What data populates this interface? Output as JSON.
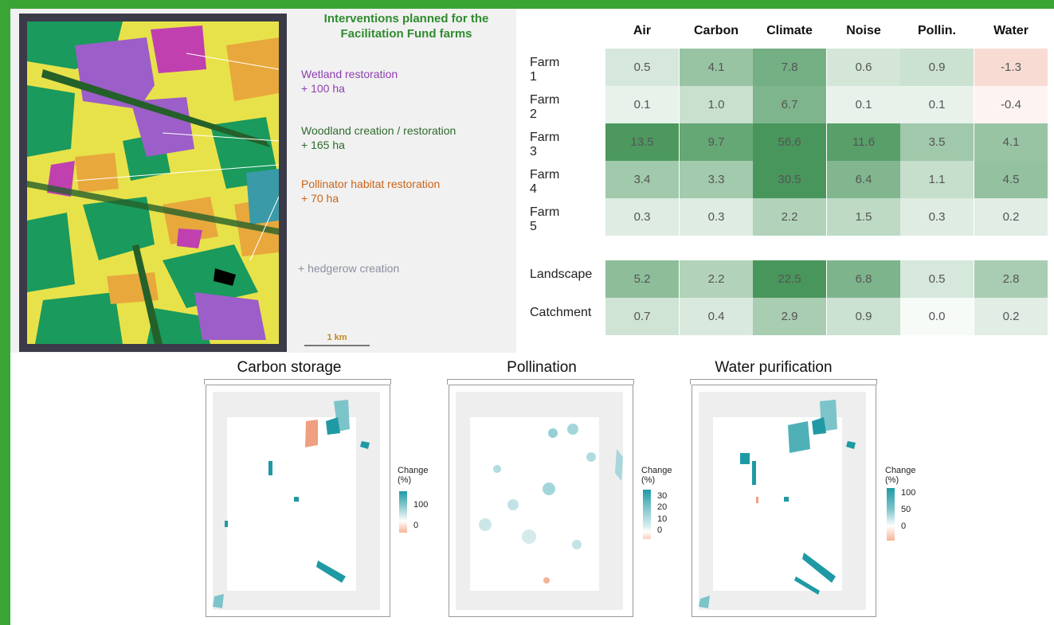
{
  "left_panel": {
    "title": "Interventions planned for the Facilitation Fund farms",
    "legend": [
      {
        "label": "Wetland restoration",
        "amount": "+ 100 ha",
        "color": "#8e3fb0"
      },
      {
        "label": "Woodland creation / restoration",
        "amount": "+ 165 ha",
        "color": "#2e6b2e"
      },
      {
        "label": "Pollinator habitat restoration",
        "amount": "+ 70 ha",
        "color": "#c9651a"
      }
    ],
    "hedgerow": "+ hedgerow creation",
    "scale": "1 km",
    "colors": {
      "wetland": "#9c5ec8",
      "woodland": "#1a9a5c",
      "pollinator": "#e8a83c",
      "arable": "#e8e24a",
      "dark": "#3a3a48"
    }
  },
  "chart_data": [
    {
      "type": "heatmap",
      "columns": [
        "Air",
        "Carbon",
        "Climate",
        "Noise",
        "Pollin.",
        "Water"
      ],
      "rows": [
        "Farm 1",
        "Farm 2",
        "Farm 3",
        "Farm 4",
        "Farm 5",
        "Landscape",
        "Catchment"
      ],
      "values": [
        [
          0.5,
          4.1,
          7.8,
          0.6,
          0.9,
          -1.3
        ],
        [
          0.1,
          1.0,
          6.7,
          0.1,
          0.1,
          -0.4
        ],
        [
          13.5,
          9.7,
          56.6,
          11.6,
          3.5,
          4.1
        ],
        [
          3.4,
          3.3,
          30.5,
          6.4,
          1.1,
          4.5
        ],
        [
          0.3,
          0.3,
          2.2,
          1.5,
          0.3,
          0.2
        ],
        [
          5.2,
          2.2,
          22.5,
          6.8,
          0.5,
          2.8
        ],
        [
          0.7,
          0.4,
          2.9,
          0.9,
          0.0,
          0.2
        ]
      ],
      "display": [
        [
          "0.5",
          "4.1",
          "7.8",
          "0.6",
          "0.9",
          "-1.3"
        ],
        [
          "0.1",
          "1.0",
          "6.7",
          "0.1",
          "0.1",
          "-0.4"
        ],
        [
          "13.5",
          "9.7",
          "56.6",
          "11.6",
          "3.5",
          "4.1"
        ],
        [
          "3.4",
          "3.3",
          "30.5",
          "6.4",
          "1.1",
          "4.5"
        ],
        [
          "0.3",
          "0.3",
          "2.2",
          "1.5",
          "0.3",
          "0.2"
        ],
        [
          "5.2",
          "2.2",
          "22.5",
          "6.8",
          "0.5",
          "2.8"
        ],
        [
          "0.7",
          "0.4",
          "2.9",
          "0.9",
          "0.0",
          "0.2"
        ]
      ],
      "colors": {
        "positive": "#3d8f52",
        "negative": "#e8846a"
      }
    },
    {
      "type": "map",
      "title": "Carbon storage",
      "legend_title": "Change\n(%)",
      "legend_ticks": [
        "100",
        "0"
      ],
      "legend_range": [
        -30,
        130
      ]
    },
    {
      "type": "map",
      "title": "Pollination",
      "legend_title": "Change\n(%)",
      "legend_ticks": [
        "30",
        "20",
        "10",
        "0"
      ],
      "legend_range": [
        -5,
        35
      ]
    },
    {
      "type": "map",
      "title": "Water purification",
      "legend_title": "Change\n(%)",
      "legend_ticks": [
        "100",
        "50",
        "0"
      ],
      "legend_range": [
        -30,
        120
      ]
    }
  ]
}
